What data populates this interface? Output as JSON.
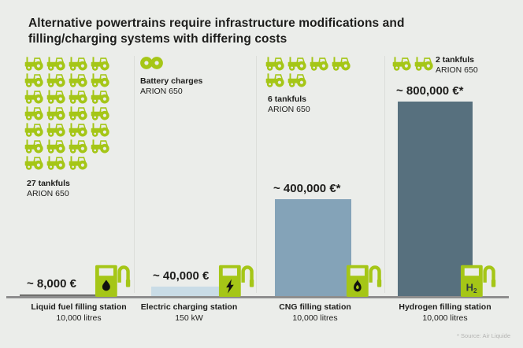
{
  "title": {
    "line1": "Alternative powertrains require infrastructure modifications and",
    "line2": "filling/charging systems with differing costs"
  },
  "colors": {
    "bg": "#ebedea",
    "text": "#1d1d1b",
    "green": "#a5c617",
    "axis": "#8e8e8e"
  },
  "columns": [
    {
      "id": "liquid-fuel",
      "tractor_count": 27,
      "tankfuls_label": "27 tankfuls",
      "tankfuls_sub": "ARION 650",
      "value_label": "~ 8,000 €",
      "station": "Liquid fuel filling station",
      "capacity": "10,000 litres",
      "pump_symbol": "fuel-drop"
    },
    {
      "id": "electric",
      "tractor_count": 0,
      "tankfuls_label": "Battery charges",
      "tankfuls_sub": "ARION 650",
      "value_label": "~ 40,000 €",
      "station": "Electric charging station",
      "capacity": "150 kW",
      "pump_symbol": "lightning-bolt"
    },
    {
      "id": "cng",
      "tractor_count": 6,
      "tankfuls_label": "6 tankfuls",
      "tankfuls_sub": "ARION 650",
      "value_label": "~ 400,000 €*",
      "station": "CNG filling station",
      "capacity": "10,000 litres",
      "pump_symbol": "flame"
    },
    {
      "id": "hydrogen",
      "tractor_count": 2,
      "tankfuls_label": "2 tankfuls",
      "tankfuls_sub": "ARION 650",
      "value_label": "~ 800,000 €*",
      "station": "Hydrogen filling station",
      "capacity": "10,000 litres",
      "pump_symbol": "H2"
    }
  ],
  "hydrogen_symbol": "H",
  "hydrogen_symbol_sub": "2",
  "source_note": "* Source: Air Liquide",
  "chart_data": {
    "type": "bar",
    "title": "Alternative powertrains require infrastructure modifications and filling/charging systems with differing costs",
    "categories": [
      "Liquid fuel filling station",
      "Electric charging station",
      "CNG filling station",
      "Hydrogen filling station"
    ],
    "values": [
      8000,
      40000,
      400000,
      800000
    ],
    "value_labels": [
      "~ 8,000 €",
      "~ 40,000 €",
      "~ 400,000 €*",
      "~ 800,000 €*"
    ],
    "category_sublabels": [
      "10,000 litres",
      "150 kW",
      "10,000 litres",
      "10,000 litres"
    ],
    "bar_colors": [
      "#6e6e6c",
      "#c9dce6",
      "#84a3b8",
      "#57707e"
    ],
    "ylim": [
      0,
      800000
    ],
    "unit": "EUR",
    "grid": false,
    "legend": false,
    "annotations": [
      {
        "bar": "Liquid fuel filling station",
        "tankfuls": 27,
        "label": "27 tankfuls",
        "vehicle": "ARION 650"
      },
      {
        "bar": "Electric charging station",
        "tankfuls": "infinite",
        "label": "Battery charges",
        "vehicle": "ARION 650"
      },
      {
        "bar": "CNG filling station",
        "tankfuls": 6,
        "label": "6 tankfuls",
        "vehicle": "ARION 650"
      },
      {
        "bar": "Hydrogen filling station",
        "tankfuls": 2,
        "label": "2 tankfuls",
        "vehicle": "ARION 650"
      }
    ],
    "source": "* Source: Air Liquide"
  }
}
